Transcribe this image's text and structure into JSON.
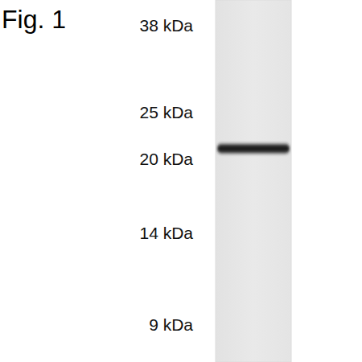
{
  "chart_data": {
    "type": "western_blot",
    "title": "Fig. 1",
    "log": "y",
    "ylim": [
      7.5,
      43
    ],
    "yticks": [
      {
        "value": 38,
        "label": "38 kDa"
      },
      {
        "value": 25,
        "label": "25 kDa"
      },
      {
        "value": 20,
        "label": "20 kDa"
      },
      {
        "value": 14,
        "label": "14 kDa"
      },
      {
        "value": 9,
        "label": "9 kDa"
      }
    ],
    "values": [
      21
    ],
    "color": "#1c1c1c"
  }
}
